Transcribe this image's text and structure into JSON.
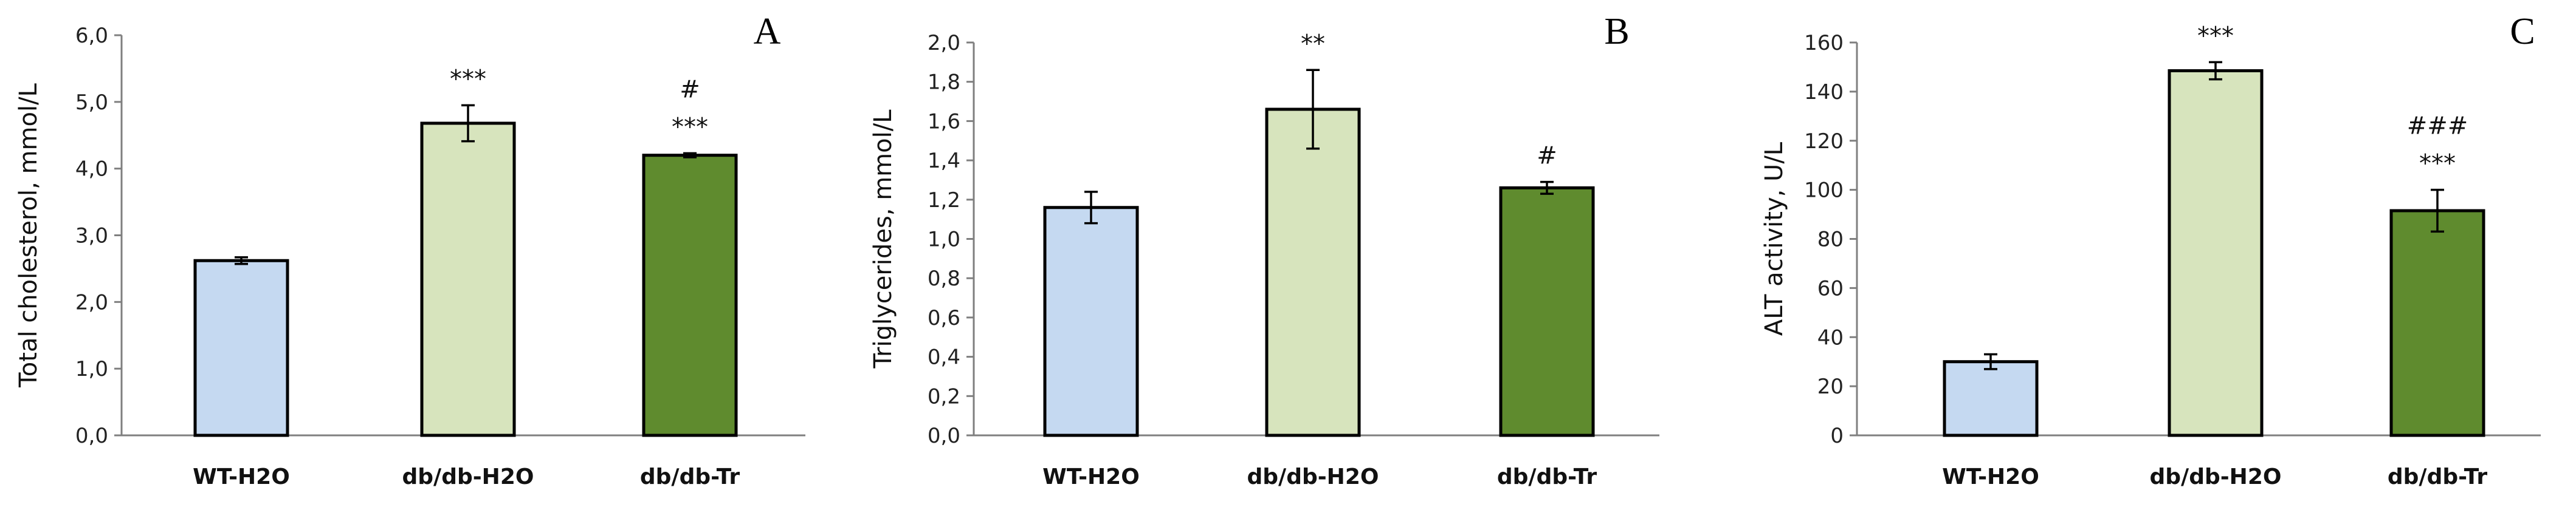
{
  "chart_data": [
    {
      "type": "bar",
      "panel_label": "A",
      "categories": [
        "WT-H2O",
        "db/db-H2O",
        "db/db-Tr"
      ],
      "values": [
        2.62,
        4.68,
        4.2
      ],
      "errors": [
        0.05,
        0.27,
        0.03
      ],
      "colors": [
        "#c5d9f1",
        "#d7e4bd",
        "#5f8b2e"
      ],
      "annotations": [
        [],
        [
          "***"
        ],
        [
          "***",
          "#"
        ]
      ],
      "ylabel": "Total cholesterol, mmol/L",
      "ylim": [
        0,
        6
      ],
      "yticks": [
        "0,0",
        "1,0",
        "2,0",
        "3,0",
        "4,0",
        "5,0",
        "6,0"
      ]
    },
    {
      "type": "bar",
      "panel_label": "B",
      "categories": [
        "WT-H2O",
        "db/db-H2O",
        "db/db-Tr"
      ],
      "values": [
        1.16,
        1.66,
        1.26
      ],
      "errors": [
        0.08,
        0.2,
        0.03
      ],
      "colors": [
        "#c5d9f1",
        "#d7e4bd",
        "#5f8b2e"
      ],
      "annotations": [
        [],
        [
          "**"
        ],
        [
          "#"
        ]
      ],
      "ylabel": "Triglycerides, mmol/L",
      "ylim": [
        0,
        2
      ],
      "yticks": [
        "0,0",
        "0,2",
        "0,4",
        "0,6",
        "0,8",
        "1,0",
        "1,2",
        "1,4",
        "1,6",
        "1,8",
        "2,0"
      ]
    },
    {
      "type": "bar",
      "panel_label": "C",
      "categories": [
        "WT-H2O",
        "db/db-H2O",
        "db/db-Tr"
      ],
      "values": [
        30,
        148.5,
        91.5
      ],
      "errors": [
        3,
        3.5,
        8.5
      ],
      "colors": [
        "#c5d9f1",
        "#d7e4bd",
        "#5f8b2e"
      ],
      "annotations": [
        [],
        [
          "***"
        ],
        [
          "***",
          "###"
        ]
      ],
      "ylabel": "ALT activity, U/L",
      "ylim": [
        0,
        160
      ],
      "yticks": [
        "0",
        "20",
        "40",
        "60",
        "80",
        "100",
        "120",
        "140",
        "160"
      ]
    }
  ]
}
